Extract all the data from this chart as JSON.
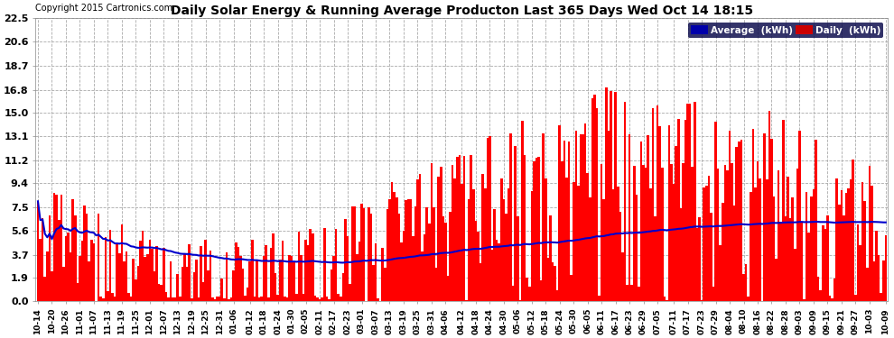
{
  "title": "Daily Solar Energy & Running Average Producton Last 365 Days Wed Oct 14 18:15",
  "copyright": "Copyright 2015 Cartronics.com",
  "bar_color": "#ff0000",
  "avg_line_color": "#0000cc",
  "background_color": "#ffffff",
  "plot_bg_color": "#ffffff",
  "grid_color": "#aaaaaa",
  "yticks": [
    0.0,
    1.9,
    3.7,
    5.6,
    7.5,
    9.4,
    11.2,
    13.1,
    15.0,
    16.8,
    18.7,
    20.6,
    22.5
  ],
  "ylim": [
    0.0,
    22.5
  ],
  "legend_avg_label": "Average  (kWh)",
  "legend_daily_label": "Daily  (kWh)",
  "legend_avg_bg": "#0000aa",
  "legend_daily_bg": "#cc0000",
  "x_dates": [
    "10-14",
    "10-20",
    "10-26",
    "11-01",
    "11-07",
    "11-13",
    "11-19",
    "11-25",
    "12-01",
    "12-07",
    "12-13",
    "12-19",
    "12-25",
    "12-31",
    "01-06",
    "01-12",
    "01-18",
    "01-24",
    "01-30",
    "02-05",
    "02-11",
    "02-17",
    "02-23",
    "03-01",
    "03-07",
    "03-13",
    "03-19",
    "03-25",
    "03-31",
    "04-06",
    "04-12",
    "04-18",
    "04-24",
    "04-30",
    "05-06",
    "05-12",
    "05-18",
    "05-24",
    "05-30",
    "06-05",
    "06-11",
    "06-17",
    "06-23",
    "06-29",
    "07-05",
    "07-11",
    "07-17",
    "07-23",
    "07-29",
    "08-04",
    "08-10",
    "08-16",
    "08-22",
    "08-28",
    "09-03",
    "09-09",
    "09-15",
    "09-21",
    "09-27",
    "10-03",
    "10-09"
  ]
}
